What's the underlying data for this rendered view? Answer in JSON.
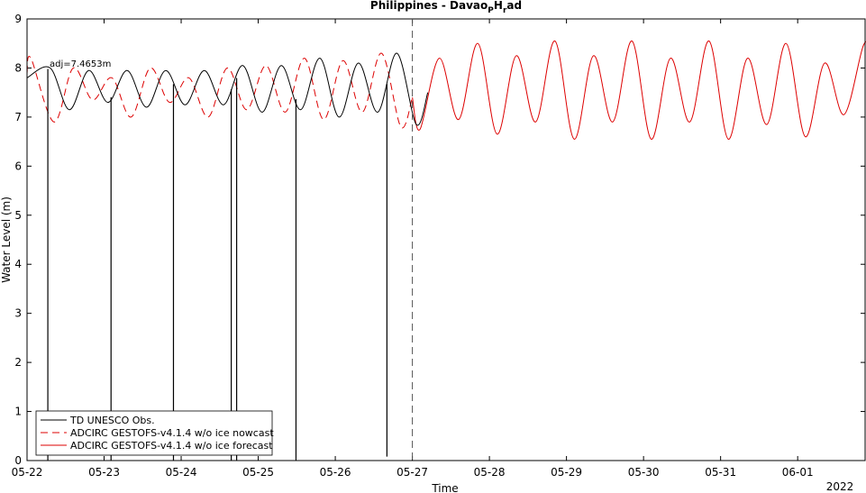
{
  "chart_data": {
    "type": "line",
    "title_main": "Philippines - Davao",
    "title_sub1": "P",
    "title_mid": "H",
    "title_sub2": "r",
    "title_end": "ad",
    "xlabel": "Time",
    "ylabel": "Water Level (m)",
    "year_label": "2022",
    "annotation": "adj=7.4653m",
    "ylim": [
      0,
      9
    ],
    "xlim": [
      "05-22 00:00",
      "06-01 21:00"
    ],
    "yticks": [
      0,
      1,
      2,
      3,
      4,
      5,
      6,
      7,
      8,
      9
    ],
    "xticks": [
      "05-22",
      "05-23",
      "05-24",
      "05-25",
      "05-26",
      "05-27",
      "05-28",
      "05-29",
      "05-30",
      "05-31",
      "06-01"
    ],
    "nowcast_end": "05-27",
    "legend_position": "bottom-left",
    "series": [
      {
        "name": "TD UNESCO Obs.",
        "color": "#000000",
        "style": "solid",
        "x_days": [
          0.0,
          0.3,
          0.55,
          0.8,
          1.05,
          1.3,
          1.55,
          1.8,
          2.05,
          2.3,
          2.55,
          2.8,
          3.05,
          3.3,
          3.55,
          3.8,
          4.05,
          4.3,
          4.55,
          4.8,
          5.05,
          5.2
        ],
        "values": [
          7.8,
          8.0,
          7.15,
          7.95,
          7.3,
          7.95,
          7.2,
          7.95,
          7.25,
          7.95,
          7.25,
          8.05,
          7.1,
          8.05,
          7.15,
          8.2,
          7.0,
          8.1,
          7.1,
          8.3,
          6.85,
          7.5
        ],
        "dropouts": [
          {
            "x_day": 0.27,
            "value": 0.0
          },
          {
            "x_day": 1.09,
            "value": 0.0
          },
          {
            "x_day": 1.9,
            "value": 0.0
          },
          {
            "x_day": 2.65,
            "value": 0.0
          },
          {
            "x_day": 2.72,
            "value": 0.0
          },
          {
            "x_day": 3.49,
            "value": 0.0
          },
          {
            "x_day": 4.67,
            "value": 0.08
          }
        ]
      },
      {
        "name": "ADCIRC GESTOFS-v4.1.4 w/o ice nowcast",
        "color": "#dd0000",
        "style": "dashed",
        "x_days": [
          0.0,
          0.05,
          0.35,
          0.6,
          0.85,
          1.1,
          1.35,
          1.6,
          1.85,
          2.1,
          2.35,
          2.6,
          2.85,
          3.1,
          3.35,
          3.6,
          3.85,
          4.1,
          4.35,
          4.6,
          4.85,
          5.0
        ],
        "values": [
          7.9,
          8.2,
          6.9,
          8.0,
          7.35,
          7.8,
          7.0,
          8.0,
          7.3,
          7.8,
          7.0,
          8.0,
          7.15,
          8.05,
          7.1,
          8.2,
          6.95,
          8.15,
          7.1,
          8.3,
          6.8,
          7.4
        ]
      },
      {
        "name": "ADCIRC GESTOFS-v4.1.4 w/o ice forecast",
        "color": "#dd0000",
        "style": "solid",
        "x_days": [
          5.0,
          5.1,
          5.35,
          5.6,
          5.85,
          6.1,
          6.35,
          6.6,
          6.85,
          7.1,
          7.35,
          7.6,
          7.85,
          8.1,
          8.35,
          8.6,
          8.85,
          9.1,
          9.35,
          9.6,
          9.85,
          10.1,
          10.35,
          10.6,
          10.85,
          10.95
        ],
        "values": [
          7.4,
          6.75,
          8.2,
          6.95,
          8.5,
          6.65,
          8.25,
          6.9,
          8.55,
          6.55,
          8.25,
          6.9,
          8.55,
          6.55,
          8.2,
          6.9,
          8.55,
          6.55,
          8.2,
          6.85,
          8.5,
          6.6,
          8.1,
          7.05,
          8.45,
          8.4
        ]
      }
    ]
  }
}
